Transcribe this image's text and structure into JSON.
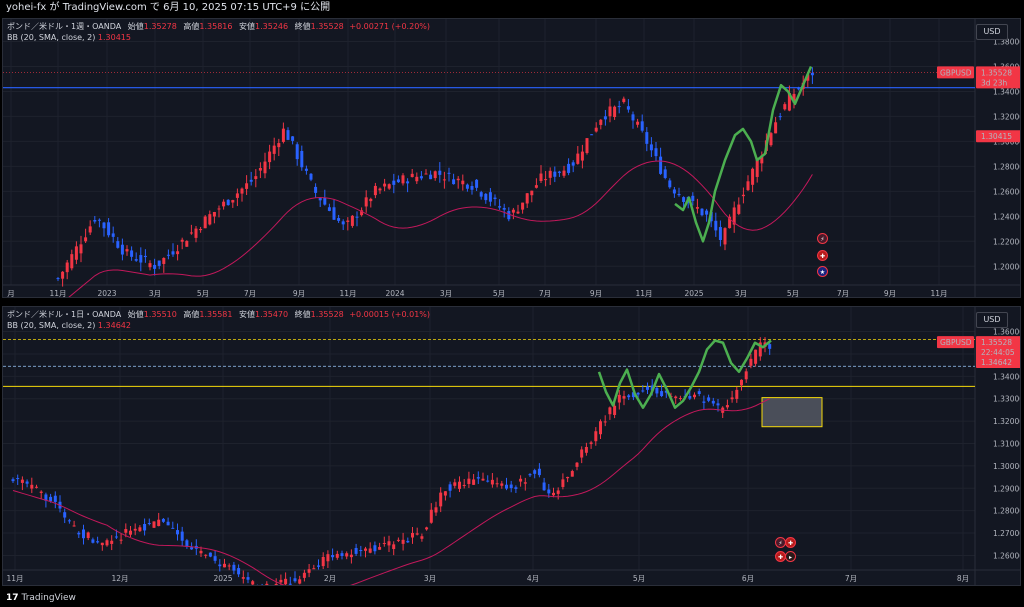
{
  "publish_bar": {
    "text": "yohei-fx が TradingView.com で 6月 10, 2025 07:15 UTC+9 に公開"
  },
  "weekly": {
    "symbol": "ポンド／米ドル・1週・OANDA",
    "open_label": "始値",
    "open": "1.35278",
    "high_label": "高値",
    "high": "1.35816",
    "low_label": "安値",
    "low": "1.35246",
    "close_label": "終値",
    "close": "1.35528",
    "change": "+0.00271 (+0.20%)",
    "indicator": "BB (20, SMA, close, 2)",
    "indicator_value": "1.30415",
    "currency": "USD",
    "price_ticks": [
      "1.38000",
      "1.36000",
      "1.34000",
      "1.32000",
      "1.30000",
      "1.28000",
      "1.26000",
      "1.24000",
      "1.22000",
      "1.20000"
    ],
    "time_ticks": [
      "月",
      "11月",
      "2023",
      "3月",
      "5月",
      "7月",
      "9月",
      "11月",
      "2024",
      "3月",
      "5月",
      "7月",
      "9月",
      "11月",
      "2025",
      "3月",
      "5月",
      "7月",
      "9月",
      "11月"
    ],
    "price_tag": {
      "symbol": "GBPUSD",
      "price": "1.35528",
      "countdown": "3d 23h"
    },
    "bb_tag": "1.30415"
  },
  "daily": {
    "symbol": "ポンド／米ドル・1日・OANDA",
    "open_label": "始値",
    "open": "1.35510",
    "high_label": "高値",
    "high": "1.35581",
    "low_label": "安値",
    "low": "1.35470",
    "close_label": "終値",
    "close": "1.35528",
    "change": "+0.00015 (+0.01%)",
    "indicator": "BB (20, SMA, close, 2)",
    "indicator_value": "1.34642",
    "currency": "USD",
    "price_ticks": [
      "1.36000",
      "1.35000",
      "1.34000",
      "1.33000",
      "1.32000",
      "1.31000",
      "1.30000",
      "1.29000",
      "1.28000",
      "1.27000",
      "1.26000"
    ],
    "time_ticks": [
      "11月",
      "12月",
      "2025",
      "2月",
      "3月",
      "4月",
      "5月",
      "6月",
      "7月",
      "8月"
    ],
    "price_tag": {
      "symbol": "GBPUSD",
      "price": "1.35528",
      "countdown": "22:44:05"
    },
    "bb_tag": "1.34642"
  },
  "footer": {
    "brand": "TradingView"
  },
  "colors": {
    "up": "#f23645",
    "down": "#2962ff",
    "bb": "#c2185b",
    "bg": "#131722",
    "hline": "#2962ff",
    "fib": "#4caf50",
    "yellow": "#f5d90a"
  },
  "icons": {
    "lightning": "lightning-icon",
    "flag_uk": "uk-flag-icon",
    "flag_us": "us-flag-icon"
  }
}
